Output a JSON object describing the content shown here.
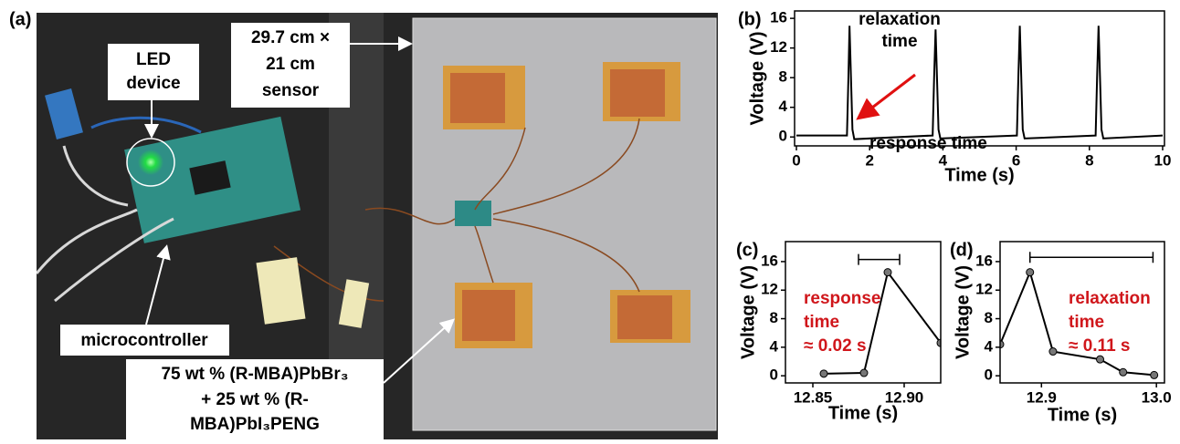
{
  "photo": {
    "label": "(a)",
    "callouts": [
      {
        "lines": [
          "LED",
          "device"
        ]
      },
      {
        "lines": [
          "29.7 cm ×",
          "21 cm",
          "sensor"
        ]
      },
      {
        "lines": [
          "microcontroller"
        ]
      },
      {
        "lines": [
          "75 wt % (R-MBA)PbBr₃",
          "+ 25 wt % (R-",
          "MBA)PbI₃PENG"
        ]
      }
    ]
  },
  "chart_data": [
    {
      "type": "line",
      "label": "(b)",
      "xlabel": "Time (s)",
      "ylabel": "Voltage (V)",
      "x": [
        0,
        1.38,
        1.42,
        1.45,
        1.53,
        1.58,
        3.72,
        3.76,
        3.8,
        3.88,
        3.93,
        6.02,
        6.06,
        6.1,
        6.18,
        6.23,
        8.17,
        8.21,
        8.25,
        8.33,
        8.38,
        10
      ],
      "values": [
        0.2,
        0.2,
        8,
        15,
        1,
        -0.3,
        0.2,
        8,
        14.5,
        1,
        -0.2,
        0.2,
        8,
        15,
        1,
        -0.2,
        0.2,
        8,
        15,
        1,
        -0.2,
        0.2
      ],
      "color": "#000000",
      "xlim": [
        -0.05,
        10.05
      ],
      "ylim": [
        -1.2,
        17
      ],
      "xticks": [
        0,
        2,
        4,
        6,
        8,
        10
      ],
      "yticks": [
        0,
        4,
        8,
        12,
        16
      ],
      "annotations": [
        {
          "lines": [
            "relaxation",
            "time"
          ],
          "color": "#000000"
        },
        {
          "lines": [
            "response time"
          ],
          "color": "#000000"
        }
      ]
    },
    {
      "type": "line",
      "label": "(c)",
      "xlabel": "Time (s)",
      "ylabel": "Voltage (V)",
      "x": [
        12.856,
        12.878,
        12.891,
        12.92
      ],
      "values": [
        0.3,
        0.4,
        14.5,
        4.6
      ],
      "color": "#000000",
      "markers": true,
      "xlim": [
        12.835,
        12.92
      ],
      "ylim": [
        -1,
        18.8
      ],
      "xticks": [
        12.85,
        {
          "value": 12.9,
          "label": "12.90"
        }
      ],
      "yticks": [
        0,
        4,
        8,
        12,
        16
      ],
      "bracket": {
        "x": [
          12.875,
          12.8975
        ],
        "y": 16.3
      },
      "annotations": [
        {
          "lines": [
            "response",
            "time",
            "≈ 0.02 s"
          ],
          "color": "#d0161b"
        }
      ]
    },
    {
      "type": "line",
      "label": "(d)",
      "xlabel": "Time (s)",
      "ylabel": "Voltage (V)",
      "x": [
        12.864,
        12.89,
        12.91,
        12.951,
        12.971,
        12.998
      ],
      "values": [
        4.4,
        14.5,
        3.4,
        2.3,
        0.5,
        0.1
      ],
      "color": "#000000",
      "markers": true,
      "xlim": [
        12.864,
        13.007
      ],
      "ylim": [
        -1,
        18.8
      ],
      "xticks": [
        12.9,
        {
          "value": 13,
          "label": "13.0"
        }
      ],
      "yticks": [
        0,
        4,
        8,
        12,
        16
      ],
      "bracket": {
        "x": [
          12.89,
          12.997
        ],
        "y": 16.6
      },
      "annotations": [
        {
          "lines": [
            "relaxation",
            "time",
            "≈ 0.11 s"
          ],
          "color": "#d0161b"
        }
      ]
    }
  ]
}
